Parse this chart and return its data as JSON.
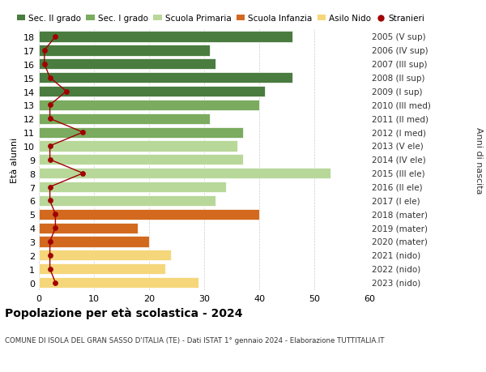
{
  "ages": [
    18,
    17,
    16,
    15,
    14,
    13,
    12,
    11,
    10,
    9,
    8,
    7,
    6,
    5,
    4,
    3,
    2,
    1,
    0
  ],
  "years": [
    "2005 (V sup)",
    "2006 (IV sup)",
    "2007 (III sup)",
    "2008 (II sup)",
    "2009 (I sup)",
    "2010 (III med)",
    "2011 (II med)",
    "2012 (I med)",
    "2013 (V ele)",
    "2014 (IV ele)",
    "2015 (III ele)",
    "2016 (II ele)",
    "2017 (I ele)",
    "2018 (mater)",
    "2019 (mater)",
    "2020 (mater)",
    "2021 (nido)",
    "2022 (nido)",
    "2023 (nido)"
  ],
  "values": [
    46,
    31,
    32,
    46,
    41,
    40,
    31,
    37,
    36,
    37,
    53,
    34,
    32,
    40,
    18,
    20,
    24,
    23,
    29
  ],
  "stranieri": [
    3,
    1,
    1,
    2,
    5,
    2,
    2,
    8,
    2,
    2,
    8,
    2,
    2,
    3,
    3,
    2,
    2,
    2,
    3
  ],
  "colors": {
    "sec2": "#4a7c40",
    "sec1": "#7aab5e",
    "primaria": "#b8d89a",
    "infanzia": "#d2691e",
    "nido": "#f5d67a",
    "stranieri": "#a00000"
  },
  "school_types": {
    "sec2": [
      18,
      17,
      16,
      15,
      14
    ],
    "sec1": [
      13,
      12,
      11
    ],
    "primaria": [
      10,
      9,
      8,
      7,
      6
    ],
    "infanzia": [
      5,
      4,
      3
    ],
    "nido": [
      2,
      1,
      0
    ]
  },
  "legend_labels": [
    "Sec. II grado",
    "Sec. I grado",
    "Scuola Primaria",
    "Scuola Infanzia",
    "Asilo Nido",
    "Stranieri"
  ],
  "title": "Popolazione per età scolastica - 2024",
  "subtitle": "COMUNE DI ISOLA DEL GRAN SASSO D'ITALIA (TE) - Dati ISTAT 1° gennaio 2024 - Elaborazione TUTTITALIA.IT",
  "ylabel": "Età alunni",
  "ylabel_right": "Anni di nascita",
  "xlim": [
    0,
    60
  ],
  "background_color": "#ffffff",
  "grid_color": "#cccccc"
}
